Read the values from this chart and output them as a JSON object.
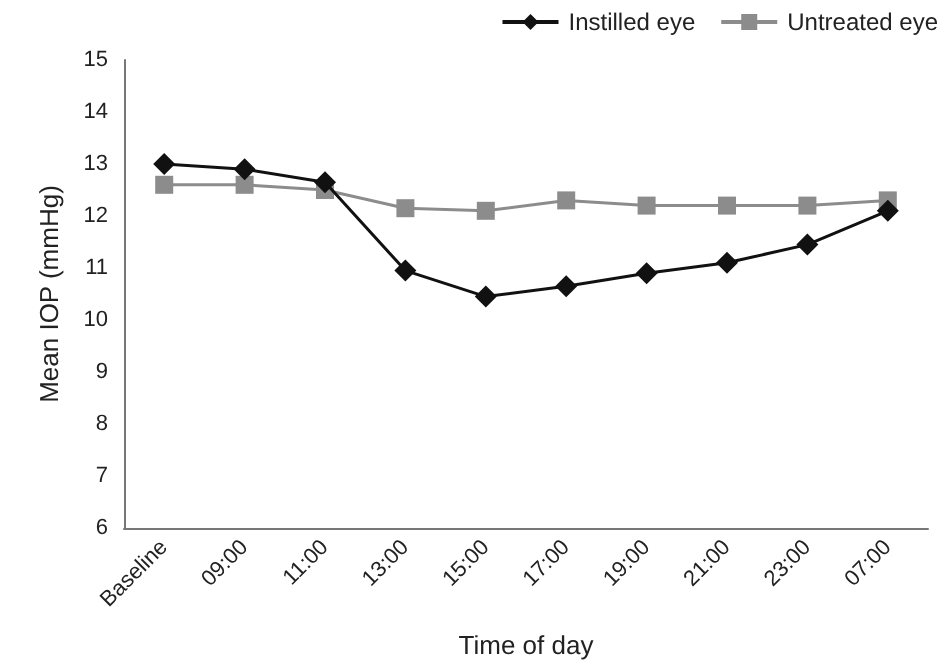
{
  "chart_data": {
    "type": "line",
    "xlabel": "Time of day",
    "ylabel": "Mean IOP (mmHg)",
    "categories": [
      "Baseline",
      "09:00",
      "11:00",
      "13:00",
      "15:00",
      "17:00",
      "19:00",
      "21:00",
      "23:00",
      "07:00"
    ],
    "series": [
      {
        "name": "Instilled eye",
        "color": "#111111",
        "marker": "diamond",
        "values": [
          13.0,
          12.9,
          12.65,
          10.95,
          10.45,
          10.65,
          10.9,
          11.1,
          11.45,
          12.1
        ]
      },
      {
        "name": "Untreated eye",
        "color": "#8c8c8c",
        "marker": "square",
        "values": [
          12.6,
          12.6,
          12.5,
          12.15,
          12.1,
          12.3,
          12.2,
          12.2,
          12.2,
          12.3
        ]
      }
    ],
    "ylim": [
      6,
      15
    ],
    "yticks": [
      6,
      7,
      8,
      9,
      10,
      11,
      12,
      13,
      14,
      15
    ],
    "grid": false,
    "legend": "top right"
  }
}
